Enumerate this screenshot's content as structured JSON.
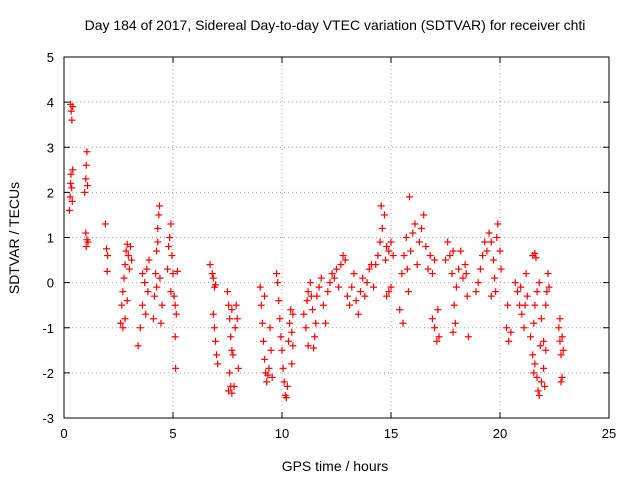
{
  "chart_data": {
    "type": "scatter",
    "title": "Day 184 of 2017, Sidereal Day-to-day VTEC variation (SDTVAR) for receiver chti",
    "xlabel": "GPS time / hours",
    "ylabel": "SDTVAR / TECUs",
    "xlim": [
      0,
      25
    ],
    "ylim": [
      -3,
      5
    ],
    "xticks": [
      0,
      5,
      10,
      15,
      20,
      25
    ],
    "yticks": [
      -3,
      -2,
      -1,
      0,
      1,
      2,
      3,
      4,
      5
    ],
    "grid": true,
    "marker": "+",
    "marker_color": "#ff0000",
    "series": [
      {
        "name": "SDTVAR",
        "points": [
          [
            0.25,
            1.6
          ],
          [
            0.28,
            1.9
          ],
          [
            0.3,
            2.2
          ],
          [
            0.32,
            2.4
          ],
          [
            0.35,
            2.1
          ],
          [
            0.38,
            1.8
          ],
          [
            0.4,
            2.5
          ],
          [
            0.3,
            3.95
          ],
          [
            0.33,
            3.8
          ],
          [
            0.36,
            3.6
          ],
          [
            0.4,
            3.9
          ],
          [
            0.95,
            2.0
          ],
          [
            1.0,
            2.3
          ],
          [
            1.02,
            2.6
          ],
          [
            1.05,
            2.9
          ],
          [
            1.08,
            2.15
          ],
          [
            1.0,
            1.1
          ],
          [
            1.05,
            0.95
          ],
          [
            1.1,
            0.9
          ],
          [
            1.02,
            0.8
          ],
          [
            1.9,
            1.3
          ],
          [
            1.95,
            0.75
          ],
          [
            2.0,
            0.6
          ],
          [
            1.98,
            0.25
          ],
          [
            2.6,
            -0.9
          ],
          [
            2.65,
            -0.5
          ],
          [
            2.7,
            -0.2
          ],
          [
            2.75,
            0.1
          ],
          [
            2.8,
            0.4
          ],
          [
            2.85,
            0.7
          ],
          [
            2.9,
            0.85
          ],
          [
            2.95,
            0.6
          ],
          [
            3.0,
            0.3
          ],
          [
            2.7,
            -1.0
          ],
          [
            2.8,
            -0.8
          ],
          [
            2.9,
            -0.4
          ],
          [
            3.05,
            0.8
          ],
          [
            3.1,
            0.5
          ],
          [
            3.4,
            -1.4
          ],
          [
            3.5,
            -1.0
          ],
          [
            3.6,
            -0.5
          ],
          [
            3.7,
            0.0
          ],
          [
            3.8,
            0.3
          ],
          [
            3.9,
            0.5
          ],
          [
            3.85,
            -0.2
          ],
          [
            3.75,
            -0.7
          ],
          [
            3.6,
            0.2
          ],
          [
            4.1,
            -0.8
          ],
          [
            4.15,
            -0.3
          ],
          [
            4.2,
            0.2
          ],
          [
            4.25,
            0.7
          ],
          [
            4.3,
            1.2
          ],
          [
            4.35,
            1.5
          ],
          [
            4.38,
            1.7
          ],
          [
            4.3,
            0.9
          ],
          [
            4.4,
            0.1
          ],
          [
            4.5,
            -0.5
          ],
          [
            4.45,
            -0.9
          ],
          [
            4.25,
            -0.1
          ],
          [
            4.8,
            0.8
          ],
          [
            4.85,
            1.0
          ],
          [
            4.9,
            1.3
          ],
          [
            4.95,
            0.6
          ],
          [
            5.0,
            0.2
          ],
          [
            5.05,
            -0.3
          ],
          [
            5.1,
            -0.5
          ],
          [
            5.15,
            -0.7
          ],
          [
            5.1,
            -1.2
          ],
          [
            5.12,
            -1.9
          ],
          [
            5.2,
            0.25
          ],
          [
            4.75,
            0.3
          ],
          [
            4.9,
            -0.2
          ],
          [
            6.7,
            0.4
          ],
          [
            6.8,
            0.2
          ],
          [
            6.85,
            0.1
          ],
          [
            6.9,
            -0.1
          ],
          [
            6.95,
            -0.05
          ],
          [
            6.85,
            -0.7
          ],
          [
            6.9,
            -1.0
          ],
          [
            6.95,
            -1.3
          ],
          [
            7.0,
            -1.6
          ],
          [
            7.05,
            -1.8
          ],
          [
            7.5,
            -0.2
          ],
          [
            7.55,
            -0.5
          ],
          [
            7.6,
            -0.8
          ],
          [
            7.65,
            -1.2
          ],
          [
            7.7,
            -1.5
          ],
          [
            7.6,
            -2.0
          ],
          [
            7.65,
            -2.3
          ],
          [
            7.7,
            -2.45
          ],
          [
            7.8,
            -2.3
          ],
          [
            7.75,
            -1.6
          ],
          [
            7.85,
            -1.0
          ],
          [
            7.9,
            -0.5
          ],
          [
            7.95,
            -0.8
          ],
          [
            8.0,
            -1.9
          ],
          [
            7.55,
            -2.4
          ],
          [
            7.7,
            -0.6
          ],
          [
            9.0,
            -0.1
          ],
          [
            9.05,
            -0.5
          ],
          [
            9.1,
            -0.9
          ],
          [
            9.15,
            -1.3
          ],
          [
            9.2,
            -1.7
          ],
          [
            9.25,
            -2.0
          ],
          [
            9.3,
            -2.2
          ],
          [
            9.4,
            -1.9
          ],
          [
            9.5,
            -1.5
          ],
          [
            9.45,
            -1.0
          ],
          [
            9.35,
            -2.05
          ],
          [
            9.55,
            -2.1
          ],
          [
            9.2,
            -0.3
          ],
          [
            9.75,
            0.2
          ],
          [
            9.8,
            0.0
          ],
          [
            9.85,
            -0.4
          ],
          [
            9.9,
            -0.8
          ],
          [
            9.95,
            -1.2
          ],
          [
            10.0,
            -1.5
          ],
          [
            10.05,
            -1.9
          ],
          [
            10.1,
            -2.2
          ],
          [
            10.15,
            -2.5
          ],
          [
            10.2,
            -2.55
          ],
          [
            10.25,
            -2.3
          ],
          [
            10.3,
            -1.3
          ],
          [
            10.35,
            -0.9
          ],
          [
            10.4,
            -0.6
          ],
          [
            10.45,
            -1.1
          ],
          [
            10.5,
            -1.4
          ],
          [
            10.5,
            -0.7
          ],
          [
            10.45,
            -1.8
          ],
          [
            11.0,
            -0.7
          ],
          [
            11.1,
            -1.0
          ],
          [
            11.15,
            -0.4
          ],
          [
            11.2,
            -0.2
          ],
          [
            11.3,
            0.0
          ],
          [
            11.4,
            -0.6
          ],
          [
            11.5,
            -1.2
          ],
          [
            11.55,
            -0.9
          ],
          [
            11.6,
            -0.3
          ],
          [
            11.7,
            -0.1
          ],
          [
            11.8,
            0.1
          ],
          [
            11.9,
            -0.5
          ],
          [
            12.0,
            -0.9
          ],
          [
            11.45,
            -1.45
          ],
          [
            11.35,
            -0.3
          ],
          [
            11.2,
            -1.4
          ],
          [
            12.1,
            -0.2
          ],
          [
            12.2,
            0.0
          ],
          [
            12.3,
            0.2
          ],
          [
            12.4,
            0.1
          ],
          [
            12.5,
            0.3
          ],
          [
            12.6,
            -0.1
          ],
          [
            12.7,
            0.4
          ],
          [
            12.8,
            0.6
          ],
          [
            12.9,
            0.5
          ],
          [
            13.0,
            -0.3
          ],
          [
            13.1,
            -0.5
          ],
          [
            13.2,
            -0.1
          ],
          [
            13.3,
            0.2
          ],
          [
            13.4,
            -0.4
          ],
          [
            13.5,
            -0.7
          ],
          [
            13.6,
            -0.2
          ],
          [
            13.7,
            0.1
          ],
          [
            13.8,
            -0.3
          ],
          [
            13.9,
            0.0
          ],
          [
            14.0,
            0.3
          ],
          [
            14.1,
            0.4
          ],
          [
            14.2,
            -0.1
          ],
          [
            14.3,
            0.4
          ],
          [
            14.4,
            0.6
          ],
          [
            14.5,
            0.9
          ],
          [
            14.6,
            1.2
          ],
          [
            14.7,
            1.5
          ],
          [
            14.8,
            0.8
          ],
          [
            14.9,
            0.7
          ],
          [
            15.0,
            0.9
          ],
          [
            15.1,
            0.6
          ],
          [
            14.55,
            1.7
          ],
          [
            14.75,
            0.5
          ],
          [
            14.8,
            -0.3
          ],
          [
            14.9,
            -0.2
          ],
          [
            15.0,
            -0.1
          ],
          [
            15.4,
            -0.6
          ],
          [
            15.5,
            0.2
          ],
          [
            15.6,
            0.6
          ],
          [
            15.7,
            1.0
          ],
          [
            15.75,
            0.3
          ],
          [
            15.8,
            -0.2
          ],
          [
            15.9,
            0.7
          ],
          [
            16.0,
            1.1
          ],
          [
            16.1,
            1.3
          ],
          [
            15.85,
            1.9
          ],
          [
            16.2,
            0.4
          ],
          [
            16.3,
            0.9
          ],
          [
            16.4,
            1.2
          ],
          [
            16.5,
            1.5
          ],
          [
            16.6,
            0.8
          ],
          [
            16.7,
            0.3
          ],
          [
            16.8,
            0.6
          ],
          [
            16.9,
            0.2
          ],
          [
            17.0,
            0.5
          ],
          [
            15.55,
            -0.9
          ],
          [
            16.9,
            -0.8
          ],
          [
            17.0,
            -1.0
          ],
          [
            17.1,
            -1.3
          ],
          [
            17.15,
            -0.6
          ],
          [
            17.2,
            -1.2
          ],
          [
            17.5,
            0.5
          ],
          [
            17.6,
            0.9
          ],
          [
            17.7,
            0.6
          ],
          [
            17.8,
            0.2
          ],
          [
            17.85,
            0.7
          ],
          [
            18.0,
            -0.1
          ],
          [
            18.1,
            0.3
          ],
          [
            18.2,
            0.7
          ],
          [
            18.3,
            0.1
          ],
          [
            18.4,
            0.4
          ],
          [
            18.5,
            -0.3
          ],
          [
            18.45,
            0.2
          ],
          [
            18.55,
            -1.2
          ],
          [
            17.9,
            -0.5
          ],
          [
            17.95,
            -0.9
          ],
          [
            17.85,
            -1.1
          ],
          [
            18.9,
            -0.2
          ],
          [
            19.0,
            0.0
          ],
          [
            19.1,
            0.3
          ],
          [
            19.2,
            0.6
          ],
          [
            19.3,
            0.9
          ],
          [
            19.4,
            0.7
          ],
          [
            19.5,
            1.1
          ],
          [
            19.6,
            0.9
          ],
          [
            19.7,
            0.5
          ],
          [
            19.75,
            0.1
          ],
          [
            19.8,
            -0.2
          ],
          [
            19.9,
            1.3
          ],
          [
            20.0,
            0.7
          ],
          [
            19.85,
            1.0
          ],
          [
            19.6,
            -0.3
          ],
          [
            20.05,
            0.3
          ],
          [
            20.3,
            -1.0
          ],
          [
            20.4,
            -1.3
          ],
          [
            20.5,
            -1.1
          ],
          [
            20.35,
            -0.5
          ],
          [
            20.7,
            0.0
          ],
          [
            20.8,
            -0.2
          ],
          [
            20.9,
            -0.5
          ],
          [
            21.0,
            -0.7
          ],
          [
            21.1,
            -1.0
          ],
          [
            20.95,
            -0.1
          ],
          [
            21.15,
            -0.5
          ],
          [
            21.2,
            0.2
          ],
          [
            21.25,
            -0.3
          ],
          [
            21.4,
            -1.2
          ],
          [
            21.5,
            -1.6
          ],
          [
            21.55,
            -2.0
          ],
          [
            21.6,
            -1.8
          ],
          [
            21.7,
            -2.1
          ],
          [
            21.75,
            -2.4
          ],
          [
            21.8,
            -2.5
          ],
          [
            21.9,
            -2.2
          ],
          [
            22.0,
            -1.9
          ],
          [
            21.6,
            -0.5
          ],
          [
            21.7,
            -0.2
          ],
          [
            21.8,
            0.0
          ],
          [
            21.5,
            0.6
          ],
          [
            21.6,
            0.65
          ],
          [
            21.65,
            0.55
          ],
          [
            21.9,
            -0.8
          ],
          [
            22.0,
            -1.3
          ],
          [
            22.1,
            -1.5
          ],
          [
            21.55,
            -0.9
          ],
          [
            21.85,
            -1.4
          ],
          [
            22.05,
            -2.3
          ],
          [
            22.1,
            -0.5
          ],
          [
            22.15,
            -0.2
          ],
          [
            22.2,
            0.2
          ],
          [
            22.25,
            -0.1
          ],
          [
            22.7,
            -1.0
          ],
          [
            22.75,
            -1.3
          ],
          [
            22.8,
            -1.6
          ],
          [
            22.85,
            -1.2
          ],
          [
            22.9,
            -1.5
          ],
          [
            22.8,
            -2.2
          ],
          [
            22.85,
            -2.1
          ],
          [
            22.75,
            -0.8
          ]
        ]
      }
    ]
  }
}
